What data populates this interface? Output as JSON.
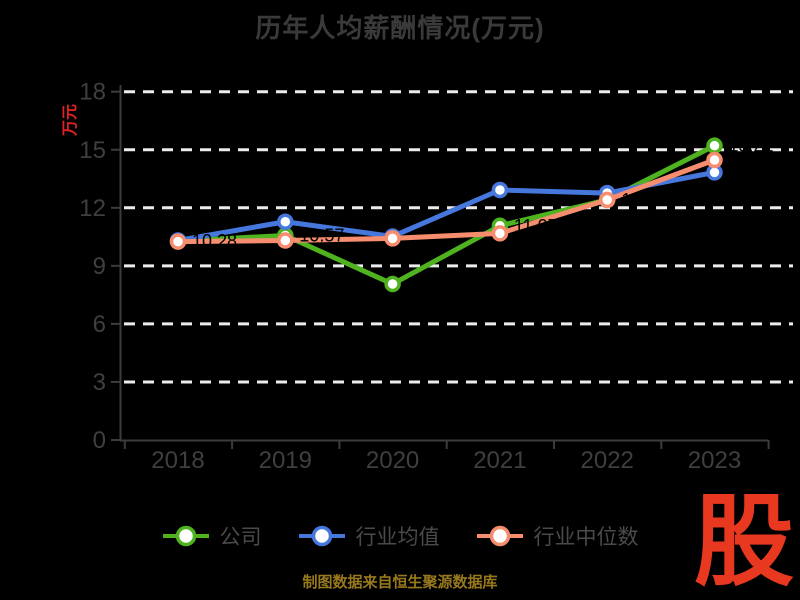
{
  "title": "历年人均薪酬情况(万元)",
  "y_axis_name": "万元",
  "caption": "制图数据来自恒生聚源数据库",
  "logo_text": "股",
  "colors": {
    "background": "#000000",
    "title": "#3a3a3a",
    "axis": "#3c3c3c",
    "tick_label": "#3f3f3f",
    "grid": "#ececec",
    "legend_text": "#4a4a4a",
    "y_axis_name": "#e02222",
    "caption": "#97781c",
    "logo": "#e8381f",
    "company": "#4fb320",
    "industry_avg": "#4577dd",
    "industry_median": "#f68d6f",
    "point_label": "#000000",
    "marker_fill": "#ffffff"
  },
  "chart_data": {
    "type": "line",
    "title": "历年人均薪酬情况(万元)",
    "ylabel": "万元",
    "categories": [
      "2018",
      "2019",
      "2020",
      "2021",
      "2022",
      "2023"
    ],
    "yticks": [
      0,
      3,
      6,
      9,
      12,
      15,
      18
    ],
    "ylim": [
      0,
      18
    ],
    "grid": true,
    "grid_style": "dashed-white",
    "legend_position": "bottom",
    "series": [
      {
        "key": "company",
        "name": "公司",
        "color": "#4fb320",
        "values": [
          10.28,
          10.57,
          8.06,
          11.07,
          12.41,
          15.21
        ],
        "point_labels": [
          "10.28",
          "10.57",
          "8.06",
          "11.07",
          "12.41",
          "15.21"
        ]
      },
      {
        "key": "industry-avg",
        "name": "行业均值",
        "color": "#4577dd",
        "values": [
          10.31,
          11.28,
          10.52,
          12.92,
          12.76,
          13.83
        ]
      },
      {
        "key": "industry-median",
        "name": "行业中位数",
        "color": "#f68d6f",
        "values": [
          10.25,
          10.31,
          10.42,
          10.68,
          12.41,
          14.47
        ]
      }
    ]
  }
}
